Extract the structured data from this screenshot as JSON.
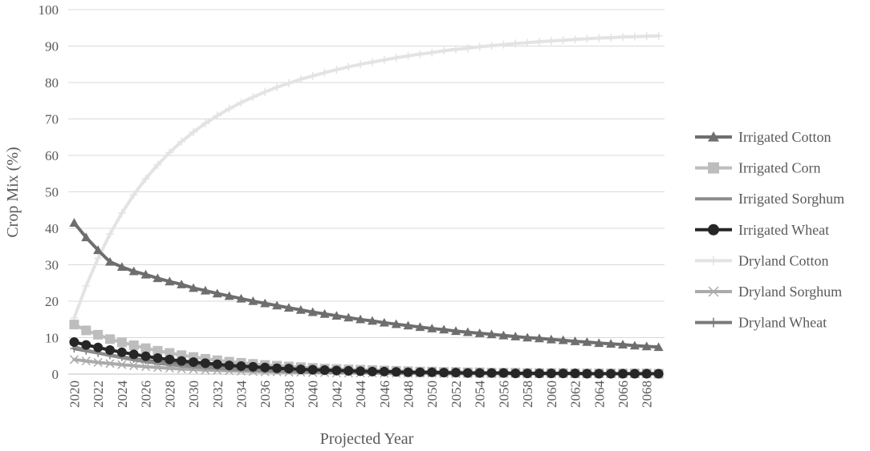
{
  "chart_data": {
    "type": "line",
    "title": "",
    "xlabel": "Projected Year",
    "ylabel": "Crop Mix (%)",
    "ylim": [
      0,
      100
    ],
    "yticks": [
      0,
      10,
      20,
      30,
      40,
      50,
      60,
      70,
      80,
      90,
      100
    ],
    "x_start": 2020,
    "x_end": 2069,
    "xtick_labels": [
      "2020",
      "2022",
      "2024",
      "2026",
      "2028",
      "2030",
      "2032",
      "2034",
      "2036",
      "2038",
      "2040",
      "2042",
      "2044",
      "2046",
      "2048",
      "2050",
      "2052",
      "2054",
      "2056",
      "2058",
      "2060",
      "2062",
      "2064",
      "2066",
      "2068"
    ],
    "grid": "horizontal",
    "legend_position": "right",
    "series": [
      {
        "name": "Irrigated Cotton",
        "color": "#6e6e6e",
        "marker": "triangle",
        "values": [
          41.5,
          37.5,
          34.0,
          30.8,
          29.4,
          28.2,
          27.3,
          26.3,
          25.4,
          24.6,
          23.6,
          22.9,
          22.1,
          21.4,
          20.7,
          20.0,
          19.4,
          18.8,
          18.2,
          17.6,
          17.0,
          16.5,
          16.0,
          15.5,
          15.0,
          14.6,
          14.1,
          13.7,
          13.3,
          12.9,
          12.5,
          12.2,
          11.8,
          11.5,
          11.2,
          10.9,
          10.6,
          10.3,
          10.0,
          9.8,
          9.5,
          9.3,
          9.0,
          8.8,
          8.5,
          8.3,
          8.1,
          7.8,
          7.6,
          7.4
        ]
      },
      {
        "name": "Irrigated Corn",
        "color": "#bdbdbd",
        "marker": "square",
        "values": [
          13.6,
          12.0,
          10.8,
          9.6,
          8.7,
          7.9,
          7.1,
          6.4,
          5.8,
          5.2,
          4.7,
          4.2,
          3.8,
          3.4,
          3.1,
          2.8,
          2.5,
          2.3,
          2.1,
          1.9,
          1.7,
          1.5,
          1.4,
          1.3,
          1.2,
          1.1,
          1.0,
          0.9,
          0.8,
          0.7,
          0.7,
          0.6,
          0.6,
          0.5,
          0.5,
          0.4,
          0.4,
          0.4,
          0.3,
          0.3,
          0.3,
          0.3,
          0.2,
          0.2,
          0.2,
          0.2,
          0.2,
          0.2,
          0.2,
          0.1
        ]
      },
      {
        "name": "Irrigated Sorghum",
        "color": "#8c8c8c",
        "marker": "none",
        "values": [
          7.5,
          6.6,
          5.8,
          5.1,
          4.5,
          3.9,
          3.4,
          3.0,
          2.6,
          2.3,
          2.0,
          1.8,
          1.6,
          1.4,
          1.2,
          1.1,
          1.0,
          0.9,
          0.8,
          0.7,
          0.6,
          0.6,
          0.5,
          0.5,
          0.4,
          0.4,
          0.4,
          0.3,
          0.3,
          0.3,
          0.3,
          0.2,
          0.2,
          0.2,
          0.2,
          0.2,
          0.2,
          0.2,
          0.1,
          0.1,
          0.1,
          0.1,
          0.1,
          0.1,
          0.1,
          0.1,
          0.1,
          0.1,
          0.1,
          0.1
        ]
      },
      {
        "name": "Irrigated Wheat",
        "color": "#262626",
        "marker": "circle",
        "values": [
          8.8,
          8.0,
          7.3,
          6.6,
          6.0,
          5.4,
          4.9,
          4.4,
          4.0,
          3.6,
          3.3,
          3.0,
          2.7,
          2.4,
          2.2,
          2.0,
          1.8,
          1.6,
          1.5,
          1.3,
          1.2,
          1.1,
          1.0,
          0.9,
          0.8,
          0.7,
          0.7,
          0.6,
          0.5,
          0.5,
          0.5,
          0.4,
          0.4,
          0.3,
          0.3,
          0.3,
          0.3,
          0.2,
          0.2,
          0.2,
          0.2,
          0.2,
          0.2,
          0.1,
          0.1,
          0.1,
          0.1,
          0.1,
          0.1,
          0.1
        ]
      },
      {
        "name": "Dryland Cotton",
        "color": "#e3e3e3",
        "marker": "plus",
        "values": [
          15.4,
          24.2,
          31.8,
          38.4,
          44.2,
          49.2,
          53.6,
          57.4,
          60.8,
          63.8,
          66.4,
          68.8,
          70.9,
          72.8,
          74.5,
          76.0,
          77.4,
          78.7,
          79.8,
          80.9,
          81.8,
          82.7,
          83.5,
          84.3,
          85.0,
          85.6,
          86.2,
          86.8,
          87.3,
          87.8,
          88.2,
          88.7,
          89.1,
          89.4,
          89.8,
          90.1,
          90.4,
          90.7,
          90.9,
          91.2,
          91.4,
          91.6,
          91.8,
          92.0,
          92.2,
          92.3,
          92.5,
          92.6,
          92.7,
          92.8
        ]
      },
      {
        "name": "Dryland Sorghum",
        "color": "#ababab",
        "marker": "x",
        "values": [
          4.0,
          3.6,
          3.2,
          2.9,
          2.6,
          2.3,
          2.0,
          1.8,
          1.6,
          1.4,
          1.3,
          1.1,
          1.0,
          0.9,
          0.8,
          0.7,
          0.6,
          0.6,
          0.5,
          0.5,
          0.4,
          0.4,
          0.3,
          0.3,
          0.3,
          0.3,
          0.2,
          0.2,
          0.2,
          0.2,
          0.2,
          0.1,
          0.1,
          0.1,
          0.1,
          0.1,
          0.1,
          0.1,
          0.1,
          0.1,
          0.1,
          0.1,
          0.1,
          0.1,
          0.1,
          0.1,
          0.1,
          0.1,
          0.1,
          0.1
        ]
      },
      {
        "name": "Dryland Wheat",
        "color": "#7a7a7a",
        "marker": "plus",
        "values": [
          7.0,
          6.4,
          5.8,
          5.2,
          4.7,
          4.2,
          3.8,
          3.4,
          3.1,
          2.8,
          2.5,
          2.2,
          2.0,
          1.8,
          1.6,
          1.4,
          1.3,
          1.2,
          1.1,
          1.0,
          0.9,
          0.8,
          0.7,
          0.6,
          0.6,
          0.5,
          0.5,
          0.4,
          0.4,
          0.4,
          0.3,
          0.3,
          0.3,
          0.3,
          0.2,
          0.2,
          0.2,
          0.2,
          0.2,
          0.2,
          0.1,
          0.1,
          0.1,
          0.1,
          0.1,
          0.1,
          0.1,
          0.1,
          0.1,
          0.1
        ]
      }
    ]
  }
}
